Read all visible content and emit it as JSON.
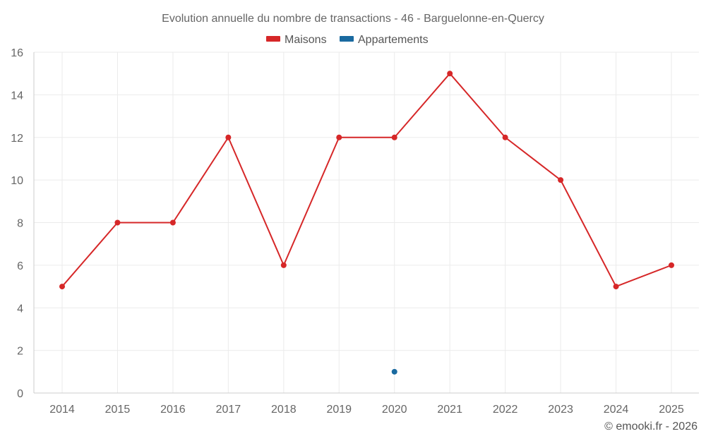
{
  "chart_data": {
    "type": "line",
    "title": "Evolution annuelle du nombre de transactions - 46 - Barguelonne-en-Quercy",
    "categories": [
      "2014",
      "2015",
      "2016",
      "2017",
      "2018",
      "2019",
      "2020",
      "2021",
      "2022",
      "2023",
      "2024",
      "2025"
    ],
    "series": [
      {
        "name": "Maisons",
        "color": "#d62728",
        "values": [
          5,
          8,
          8,
          12,
          6,
          12,
          12,
          15,
          12,
          10,
          5,
          6
        ]
      },
      {
        "name": "Appartements",
        "color": "#1a6aa0",
        "values": [
          null,
          null,
          null,
          null,
          null,
          null,
          1,
          null,
          null,
          null,
          null,
          null
        ]
      }
    ],
    "ylim": [
      0,
      16
    ],
    "yticks": [
      "0",
      "2",
      "4",
      "6",
      "8",
      "10",
      "12",
      "14",
      "16"
    ],
    "xlabel": "",
    "ylabel": "",
    "grid": true,
    "legend": "top-center",
    "credit": "© emooki.fr - 2026"
  }
}
